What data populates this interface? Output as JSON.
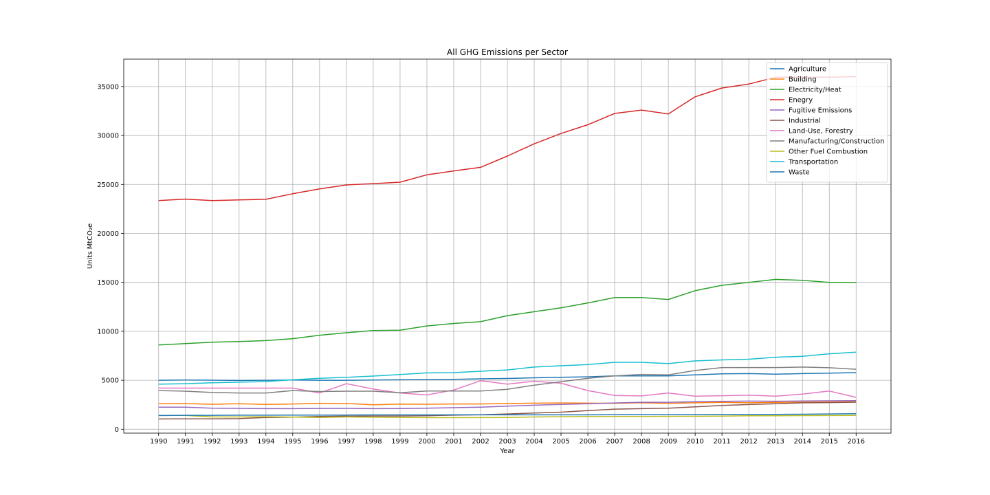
{
  "chart_data": {
    "type": "line",
    "title": "All GHG Emissions per Sector",
    "xlabel": "Year",
    "ylabel": "Units MtCO₂e",
    "x": [
      1990,
      1991,
      1992,
      1993,
      1994,
      1995,
      1996,
      1997,
      1998,
      1999,
      2000,
      2001,
      2002,
      2003,
      2004,
      2005,
      2006,
      2007,
      2008,
      2009,
      2010,
      2011,
      2012,
      2013,
      2014,
      2015,
      2016
    ],
    "ylim": [
      -400,
      37800
    ],
    "xlim": [
      1988.7,
      2017.3
    ],
    "yticks": [
      0,
      5000,
      10000,
      15000,
      20000,
      25000,
      30000,
      35000
    ],
    "grid": true,
    "legend_position": "top-right",
    "series": [
      {
        "name": "Agriculture",
        "color": "#1f77b4",
        "values": [
          5000,
          5020,
          5010,
          4980,
          5000,
          5030,
          5000,
          5000,
          5020,
          5050,
          5070,
          5100,
          5150,
          5180,
          5250,
          5300,
          5350,
          5450,
          5450,
          5450,
          5550,
          5650,
          5680,
          5620,
          5680,
          5730,
          5780
        ]
      },
      {
        "name": "Building",
        "color": "#ff7f0e",
        "values": [
          2600,
          2620,
          2550,
          2600,
          2530,
          2580,
          2650,
          2620,
          2500,
          2560,
          2550,
          2580,
          2580,
          2630,
          2660,
          2680,
          2660,
          2650,
          2700,
          2640,
          2700,
          2740,
          2700,
          2740,
          2760,
          2780,
          2800
        ]
      },
      {
        "name": "Electricity/Heat",
        "color": "#2ca02c",
        "values": [
          8600,
          8740,
          8880,
          8950,
          9050,
          9250,
          9600,
          9850,
          10080,
          10120,
          10550,
          10800,
          10980,
          11600,
          12000,
          12400,
          12900,
          13450,
          13450,
          13250,
          14150,
          14700,
          15000,
          15300,
          15200,
          15000,
          15000
        ]
      },
      {
        "name": "Enegry",
        "color": "#d62728",
        "values": [
          23350,
          23500,
          23350,
          23420,
          23480,
          24050,
          24550,
          24950,
          25080,
          25230,
          25980,
          26380,
          26750,
          27900,
          29150,
          30200,
          31100,
          32250,
          32600,
          32200,
          33950,
          34850,
          35250,
          35950,
          35950,
          35950,
          36000
        ]
      },
      {
        "name": "Fugitive Emissions",
        "color": "#9467bd",
        "values": [
          2250,
          2250,
          2150,
          2130,
          2100,
          2100,
          2120,
          2130,
          2100,
          2110,
          2150,
          2200,
          2250,
          2350,
          2450,
          2530,
          2600,
          2680,
          2750,
          2750,
          2800,
          2850,
          2870,
          2860,
          2880,
          2900,
          2920
        ]
      },
      {
        "name": "Industrial",
        "color": "#8c564b",
        "values": [
          1050,
          1060,
          1060,
          1080,
          1200,
          1230,
          1300,
          1330,
          1350,
          1350,
          1380,
          1430,
          1480,
          1560,
          1650,
          1740,
          1900,
          2050,
          2100,
          2150,
          2280,
          2420,
          2520,
          2600,
          2700,
          2720,
          2760
        ]
      },
      {
        "name": "Land-Use, Forestry",
        "color": "#e377c2",
        "values": [
          4200,
          4200,
          4200,
          4200,
          4200,
          4200,
          3700,
          4650,
          4100,
          3700,
          3500,
          4000,
          4950,
          4600,
          4900,
          4700,
          3950,
          3450,
          3400,
          3700,
          3380,
          3420,
          3480,
          3380,
          3580,
          3900,
          3250
        ]
      },
      {
        "name": "Manufacturing/Construction",
        "color": "#7f7f7f",
        "values": [
          3950,
          3880,
          3750,
          3700,
          3700,
          3950,
          3850,
          3880,
          3880,
          3720,
          3900,
          3900,
          3900,
          4080,
          4500,
          4850,
          5200,
          5450,
          5600,
          5550,
          6000,
          6300,
          6300,
          6300,
          6350,
          6280,
          6120
        ]
      },
      {
        "name": "Other Fuel Combustion",
        "color": "#bcbd22",
        "values": [
          1400,
          1410,
          1260,
          1250,
          1280,
          1240,
          1200,
          1250,
          1220,
          1200,
          1180,
          1180,
          1190,
          1200,
          1250,
          1280,
          1290,
          1300,
          1300,
          1310,
          1320,
          1340,
          1370,
          1380,
          1390,
          1400,
          1410
        ]
      },
      {
        "name": "Transportation",
        "color": "#17becf",
        "values": [
          4600,
          4650,
          4750,
          4800,
          4870,
          5050,
          5200,
          5300,
          5430,
          5580,
          5750,
          5780,
          5920,
          6050,
          6350,
          6480,
          6600,
          6830,
          6830,
          6700,
          6980,
          7080,
          7150,
          7350,
          7450,
          7700,
          7870
        ]
      },
      {
        "name": "Waste",
        "color": "#1f77b4",
        "values": [
          1400,
          1420,
          1420,
          1430,
          1430,
          1440,
          1450,
          1450,
          1460,
          1460,
          1460,
          1470,
          1470,
          1470,
          1470,
          1470,
          1470,
          1480,
          1480,
          1480,
          1490,
          1500,
          1500,
          1510,
          1530,
          1560,
          1580
        ]
      }
    ]
  }
}
